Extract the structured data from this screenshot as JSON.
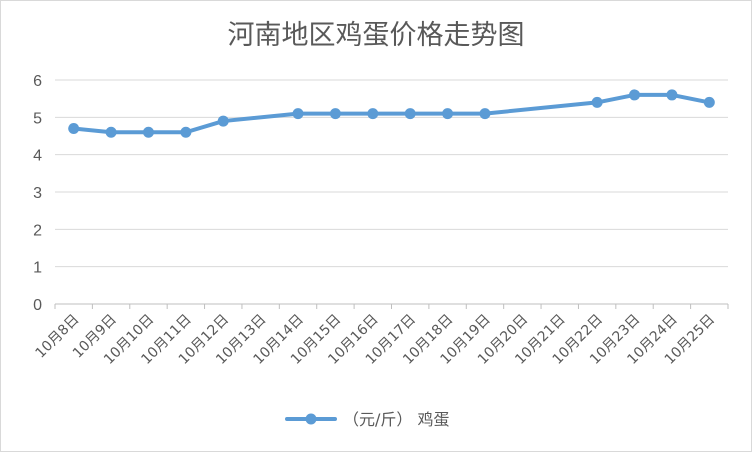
{
  "chart_data": {
    "type": "line",
    "title": "河南地区鸡蛋价格走势图",
    "xlabel": "",
    "ylabel": "",
    "categories": [
      "10月8日",
      "10月9日",
      "10月10日",
      "10月11日",
      "10月12日",
      "10月13日",
      "10月14日",
      "10月15日",
      "10月16日",
      "10月17日",
      "10月18日",
      "10月19日",
      "10月20日",
      "10月21日",
      "10月22日",
      "10月23日",
      "10月24日",
      "10月25日"
    ],
    "y_ticks": [
      "0",
      "1",
      "2",
      "3",
      "4",
      "5",
      "6"
    ],
    "ylim": [
      0,
      6
    ],
    "grid": true,
    "legend_position": "bottom",
    "series": [
      {
        "name": "（元/斤） 鸡蛋",
        "color": "#5b9bd5",
        "values": [
          4.7,
          4.6,
          4.6,
          4.6,
          4.9,
          null,
          5.1,
          5.1,
          5.1,
          5.1,
          5.1,
          5.1,
          null,
          null,
          5.4,
          5.6,
          5.6,
          5.4
        ]
      }
    ]
  }
}
